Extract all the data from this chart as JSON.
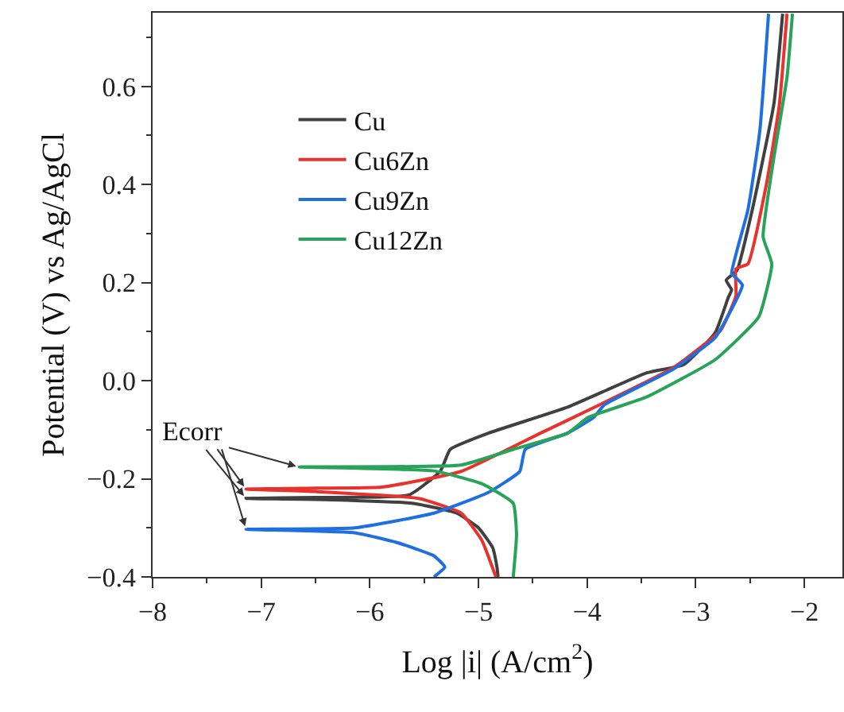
{
  "chart_data": {
    "type": "line",
    "xlabel": "Log |i| (A/cm$^{2}$)",
    "ylabel": "Potential (V) vs Ag/AgCl",
    "xlim": [
      -8,
      -1.65
    ],
    "xticks": [
      -8,
      -7,
      -6,
      -5,
      -4,
      -3,
      -2
    ],
    "ylim": [
      -0.4,
      0.75
    ],
    "yticks": [
      -0.4,
      -0.2,
      {
        "value": 0,
        "label": "0.0"
      },
      0.2,
      0.4,
      0.6
    ],
    "legend": "top left",
    "marker": "none",
    "line_style": "solid",
    "annotations": [
      {
        "text": "Ecorr",
        "x": -7.14,
        "y": -0.24
      }
    ],
    "series": [
      {
        "name": "Cu",
        "color": "#404040",
        "x": [
          -4.82,
          -4.83,
          -4.87,
          -5.0,
          -5.2,
          -5.6,
          -6.5,
          -7.14,
          -6.5,
          -5.64,
          -5.35,
          -5.26,
          -4.91,
          -4.18,
          -3.45,
          -3.11,
          -2.82,
          -2.7,
          -2.67,
          -2.72,
          -2.62,
          -2.48,
          -2.28,
          -2.2
        ],
        "values": [
          -0.4,
          -0.38,
          -0.34,
          -0.3,
          -0.27,
          -0.25,
          -0.242,
          -0.24,
          -0.238,
          -0.233,
          -0.184,
          -0.14,
          -0.107,
          -0.054,
          0.016,
          0.033,
          0.098,
          0.17,
          0.185,
          0.205,
          0.225,
          0.348,
          0.565,
          0.748
        ]
      },
      {
        "name": "Cu6Zn",
        "color": "#e8322e",
        "x": [
          -4.84,
          -4.97,
          -5.16,
          -5.55,
          -6.5,
          -7.14,
          -6.5,
          -5.89,
          -5.16,
          -4.43,
          -3.94,
          -3.21,
          -2.77,
          -2.63,
          -2.63,
          -2.52,
          -2.35,
          -2.23,
          -2.16
        ],
        "values": [
          -0.4,
          -0.325,
          -0.27,
          -0.24,
          -0.226,
          -0.221,
          -0.219,
          -0.217,
          -0.185,
          -0.107,
          -0.055,
          0.026,
          0.103,
          0.173,
          0.228,
          0.238,
          0.4,
          0.563,
          0.748
        ]
      },
      {
        "name": "Cu9Zn",
        "color": "#1f6fe0",
        "x": [
          -5.41,
          -5.31,
          -5.41,
          -5.75,
          -6.14,
          -7.14,
          -6.14,
          -5.41,
          -4.91,
          -4.62,
          -4.57,
          -4.18,
          -3.94,
          -3.84,
          -3.21,
          -2.82,
          -2.63,
          -2.57,
          -2.63,
          -2.67,
          -2.52,
          -2.41,
          -2.33
        ],
        "values": [
          -0.4,
          -0.38,
          -0.357,
          -0.33,
          -0.31,
          -0.303,
          -0.3,
          -0.27,
          -0.228,
          -0.185,
          -0.14,
          -0.107,
          -0.075,
          -0.049,
          0.023,
          0.088,
          0.163,
          0.195,
          0.21,
          0.218,
          0.348,
          0.51,
          0.748
        ]
      },
      {
        "name": "Cu12Zn",
        "color": "#27a35a",
        "x": [
          -4.68,
          -4.65,
          -4.68,
          -4.97,
          -5.41,
          -6.65,
          -5.16,
          -4.68,
          -4.18,
          -3.99,
          -3.45,
          -2.82,
          -2.42,
          -2.3,
          -2.38,
          -2.28,
          -2.16,
          -2.11
        ],
        "values": [
          -0.4,
          -0.315,
          -0.25,
          -0.21,
          -0.184,
          -0.176,
          -0.172,
          -0.14,
          -0.107,
          -0.075,
          -0.033,
          0.043,
          0.13,
          0.238,
          0.293,
          0.456,
          0.618,
          0.748
        ]
      }
    ]
  }
}
